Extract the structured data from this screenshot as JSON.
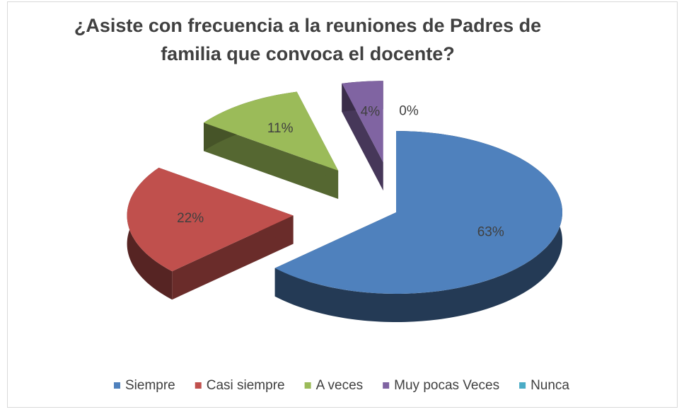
{
  "chart_data": {
    "type": "pie",
    "title": "¿Asiste con frecuencia a la reuniones de Padres de familia que convoca el docente?",
    "categories": [
      "Siempre",
      "Casi siempre",
      "A veces",
      "Muy pocas Veces",
      "Nunca"
    ],
    "values": [
      63,
      22,
      11,
      4,
      0
    ],
    "value_labels": [
      "63%",
      "22%",
      "11%",
      "4%",
      "0%"
    ],
    "colors": [
      "#4f81bd",
      "#c0504d",
      "#9bbb59",
      "#8064a2",
      "#4bacc6"
    ],
    "legend": "bottom"
  }
}
